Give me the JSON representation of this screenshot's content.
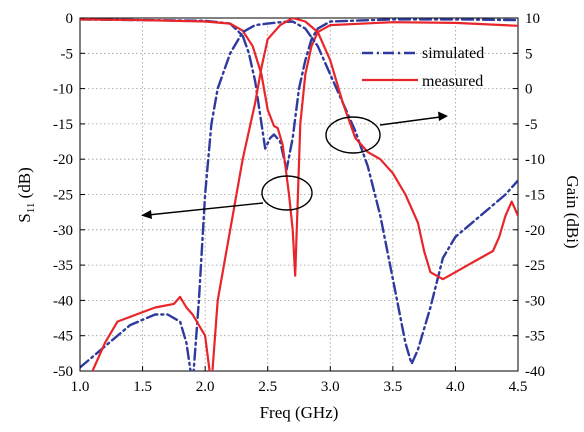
{
  "chart_data": {
    "type": "line",
    "xlabel": "Freq (GHz)",
    "ylabel_left": {
      "base": "S",
      "sub": "11",
      "unit": " (dB)"
    },
    "ylabel_right": "Gain (dBi)",
    "xlim": [
      1.0,
      4.5
    ],
    "ylim_left": [
      -50,
      0
    ],
    "ylim_right": [
      -40,
      10
    ],
    "grid": true,
    "legend_position": "top-right",
    "x_ticks": [
      "1.0",
      "1.5",
      "2.0",
      "2.5",
      "3.0",
      "3.5",
      "4.0",
      "4.5"
    ],
    "y_left_ticks": [
      "0",
      "-5",
      "-10",
      "-15",
      "-20",
      "-25",
      "-30",
      "-35",
      "-40",
      "-45",
      "-50"
    ],
    "y_right_ticks": [
      "10",
      "5",
      "0",
      "-5",
      "-10",
      "-15",
      "-20",
      "-25",
      "-30",
      "-35",
      "-40"
    ],
    "colors": {
      "simulated": "#2e3a9e",
      "measured": "#e8262a"
    },
    "legend": [
      {
        "name": "simulated",
        "style": "dash-dot",
        "color": "#2e3a9e"
      },
      {
        "name": "measured",
        "style": "solid",
        "color": "#e8262a"
      }
    ],
    "series": [
      {
        "name": "simulated",
        "axis": "left",
        "quantity": "S11",
        "points": [
          [
            1.0,
            -0.2
          ],
          [
            1.5,
            -0.3
          ],
          [
            2.0,
            -0.4
          ],
          [
            2.2,
            -0.8
          ],
          [
            2.3,
            -2.5
          ],
          [
            2.35,
            -5
          ],
          [
            2.4,
            -9
          ],
          [
            2.45,
            -15
          ],
          [
            2.48,
            -18.5
          ],
          [
            2.52,
            -17
          ],
          [
            2.55,
            -16.5
          ],
          [
            2.6,
            -17.5
          ],
          [
            2.65,
            -21.5
          ],
          [
            2.7,
            -17
          ],
          [
            2.75,
            -10
          ],
          [
            2.8,
            -6
          ],
          [
            2.85,
            -3
          ],
          [
            2.9,
            -1.5
          ],
          [
            3.0,
            -0.5
          ],
          [
            3.5,
            -0.2
          ],
          [
            4.0,
            -0.2
          ],
          [
            4.5,
            -0.3
          ]
        ]
      },
      {
        "name": "measured",
        "axis": "left",
        "quantity": "S11",
        "points": [
          [
            1.0,
            -0.2
          ],
          [
            1.5,
            -0.3
          ],
          [
            2.0,
            -0.5
          ],
          [
            2.2,
            -0.8
          ],
          [
            2.3,
            -1.8
          ],
          [
            2.38,
            -4
          ],
          [
            2.45,
            -8
          ],
          [
            2.5,
            -13
          ],
          [
            2.55,
            -15.3
          ],
          [
            2.58,
            -15.6
          ],
          [
            2.62,
            -18
          ],
          [
            2.67,
            -25
          ],
          [
            2.7,
            -30
          ],
          [
            2.72,
            -36.5
          ],
          [
            2.74,
            -26
          ],
          [
            2.76,
            -15
          ],
          [
            2.8,
            -8
          ],
          [
            2.85,
            -4
          ],
          [
            2.9,
            -2
          ],
          [
            3.0,
            -1
          ],
          [
            3.5,
            -0.6
          ],
          [
            4.0,
            -0.7
          ],
          [
            4.5,
            -1.1
          ]
        ]
      },
      {
        "name": "simulated",
        "axis": "right",
        "quantity": "Gain",
        "points": [
          [
            1.0,
            -39.5
          ],
          [
            1.2,
            -36.5
          ],
          [
            1.4,
            -33.5
          ],
          [
            1.6,
            -32
          ],
          [
            1.7,
            -32
          ],
          [
            1.8,
            -33
          ],
          [
            1.85,
            -36
          ],
          [
            1.9,
            -42
          ],
          [
            1.95,
            -30
          ],
          [
            2.0,
            -15
          ],
          [
            2.05,
            -5
          ],
          [
            2.1,
            0
          ],
          [
            2.2,
            5
          ],
          [
            2.3,
            8
          ],
          [
            2.4,
            9
          ],
          [
            2.5,
            9.2
          ],
          [
            2.6,
            9.4
          ],
          [
            2.7,
            9.5
          ],
          [
            2.8,
            8.5
          ],
          [
            2.9,
            6
          ],
          [
            3.0,
            2
          ],
          [
            3.1,
            -2
          ],
          [
            3.2,
            -6
          ],
          [
            3.3,
            -11
          ],
          [
            3.4,
            -18
          ],
          [
            3.5,
            -27
          ],
          [
            3.6,
            -36
          ],
          [
            3.65,
            -39
          ],
          [
            3.7,
            -37
          ],
          [
            3.8,
            -31
          ],
          [
            3.9,
            -24
          ],
          [
            4.0,
            -21
          ],
          [
            4.2,
            -18
          ],
          [
            4.4,
            -15
          ],
          [
            4.5,
            -13
          ]
        ]
      },
      {
        "name": "measured",
        "axis": "right",
        "quantity": "Gain",
        "points": [
          [
            1.1,
            -40
          ],
          [
            1.2,
            -36
          ],
          [
            1.3,
            -33
          ],
          [
            1.45,
            -32
          ],
          [
            1.6,
            -31
          ],
          [
            1.75,
            -30.5
          ],
          [
            1.8,
            -29.5
          ],
          [
            1.85,
            -31
          ],
          [
            1.9,
            -32
          ],
          [
            2.0,
            -35
          ],
          [
            2.05,
            -42
          ],
          [
            2.1,
            -30
          ],
          [
            2.2,
            -20
          ],
          [
            2.3,
            -10
          ],
          [
            2.4,
            -2
          ],
          [
            2.45,
            3
          ],
          [
            2.5,
            7
          ],
          [
            2.6,
            9
          ],
          [
            2.7,
            10
          ],
          [
            2.8,
            9.5
          ],
          [
            2.9,
            8
          ],
          [
            3.0,
            4
          ],
          [
            3.1,
            -2
          ],
          [
            3.2,
            -7
          ],
          [
            3.3,
            -9
          ],
          [
            3.4,
            -10
          ],
          [
            3.5,
            -12
          ],
          [
            3.6,
            -15
          ],
          [
            3.7,
            -19
          ],
          [
            3.75,
            -23
          ],
          [
            3.8,
            -26
          ],
          [
            3.9,
            -27
          ],
          [
            4.0,
            -26
          ],
          [
            4.1,
            -25
          ],
          [
            4.2,
            -24
          ],
          [
            4.3,
            -23
          ],
          [
            4.35,
            -21
          ],
          [
            4.4,
            -18
          ],
          [
            4.45,
            -16
          ],
          [
            4.5,
            -18
          ]
        ]
      }
    ]
  }
}
